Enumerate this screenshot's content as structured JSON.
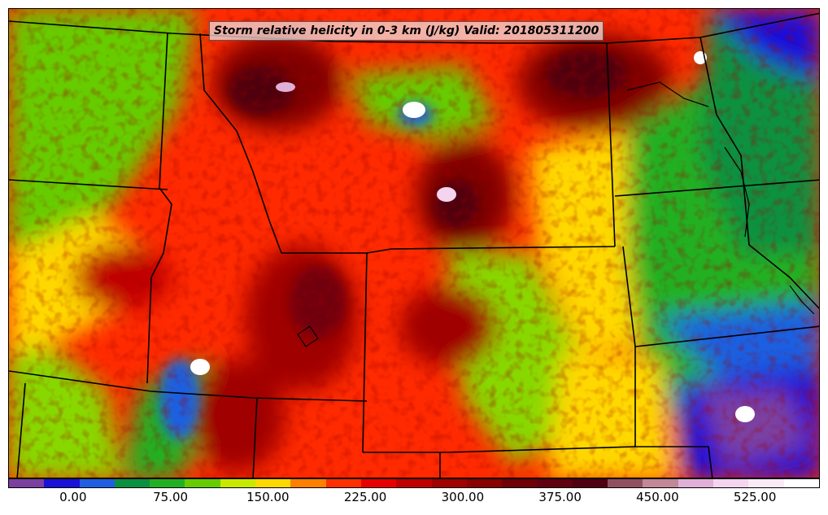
{
  "map": {
    "title": "Storm relative helicity in 0-3 km (J/kg) Valid: 201805311200",
    "field_colors": {
      "purple": "#7b3fa0",
      "blue": "#1010d8",
      "mid_blue": "#1f5fe0",
      "dark_green": "#0a9040",
      "green": "#22b022",
      "lime": "#88d800",
      "yellow_green": "#c8e800",
      "yellow": "#ffe000",
      "orange": "#ff9000",
      "red_orange": "#ff4000",
      "red": "#e80000",
      "dark_red": "#b00000",
      "maroon": "#800000",
      "deep_maroon": "#580008",
      "dusty_rose": "#905060",
      "pink": "#e8b0d8",
      "white": "#ffffff"
    }
  },
  "colorbar": {
    "colors": [
      "#7b3fa0",
      "#1a10d8",
      "#1f5fe0",
      "#0a9040",
      "#22b022",
      "#66cc00",
      "#c8e800",
      "#ffd800",
      "#ff7f00",
      "#ff3000",
      "#e80000",
      "#c00000",
      "#a00000",
      "#880000",
      "#700008",
      "#600010",
      "#500010",
      "#905060",
      "#c08898",
      "#e0b0d8",
      "#f4d4ee",
      "#faeaf6",
      "#ffffff"
    ],
    "labels": [
      "0.00",
      "75.00",
      "150.00",
      "225.00",
      "300.00",
      "375.00",
      "450.00",
      "525.00"
    ],
    "label_positions": [
      0.08,
      0.2,
      0.32,
      0.44,
      0.56,
      0.68,
      0.8,
      0.92
    ]
  }
}
